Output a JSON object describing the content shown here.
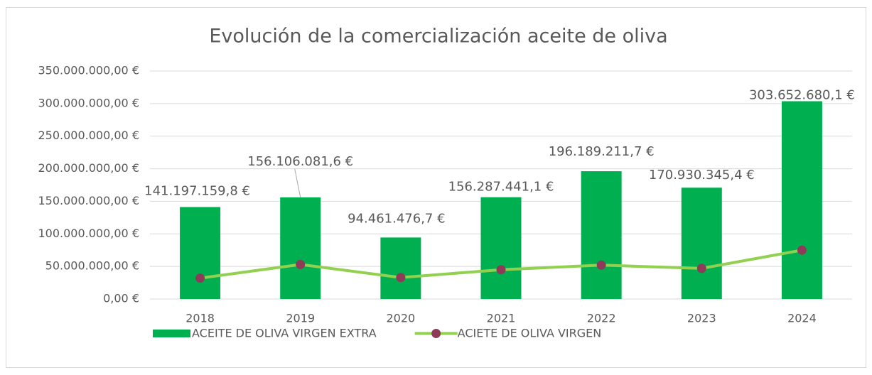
{
  "chart_data": {
    "type": "combo",
    "title": "Evolución de la comercialización aceite de oliva",
    "categories": [
      "2018",
      "2019",
      "2020",
      "2021",
      "2022",
      "2023",
      "2024"
    ],
    "series": [
      {
        "name": "ACEITE DE OLIVA VIRGEN EXTRA",
        "type": "bar",
        "color": "#00b050",
        "values": [
          141197159.8,
          156106081.6,
          94461476.7,
          156287441.1,
          196189211.7,
          170930345.4,
          303652680.1
        ],
        "value_labels": [
          "141.197.159,8 €",
          "156.106.081,6 €",
          "94.461.476,7 €",
          "156.287.441,1 €",
          "196.189.211,7 €",
          "170.930.345,4 €",
          "303.652.680,1 €"
        ]
      },
      {
        "name": "ACIETE DE OLIVA VIRGEN",
        "type": "line",
        "color": "#92d050",
        "marker_color": "#8e3a59",
        "values": [
          32000000,
          53000000,
          33000000,
          45000000,
          52000000,
          47000000,
          75000000
        ]
      }
    ],
    "ylim": [
      0,
      350000000
    ],
    "yticks": [
      {
        "value": 0,
        "label": "0,00 €"
      },
      {
        "value": 50000000,
        "label": "50.000.000,00 €"
      },
      {
        "value": 100000000,
        "label": "100.000.000,00 €"
      },
      {
        "value": 150000000,
        "label": "150.000.000,00 €"
      },
      {
        "value": 200000000,
        "label": "200.000.000,00 €"
      },
      {
        "value": 250000000,
        "label": "250.000.000,00 €"
      },
      {
        "value": 300000000,
        "label": "300.000.000,00 €"
      },
      {
        "value": 350000000,
        "label": "350.000.000,00 €"
      }
    ],
    "grid": true,
    "legend": "bottom"
  }
}
